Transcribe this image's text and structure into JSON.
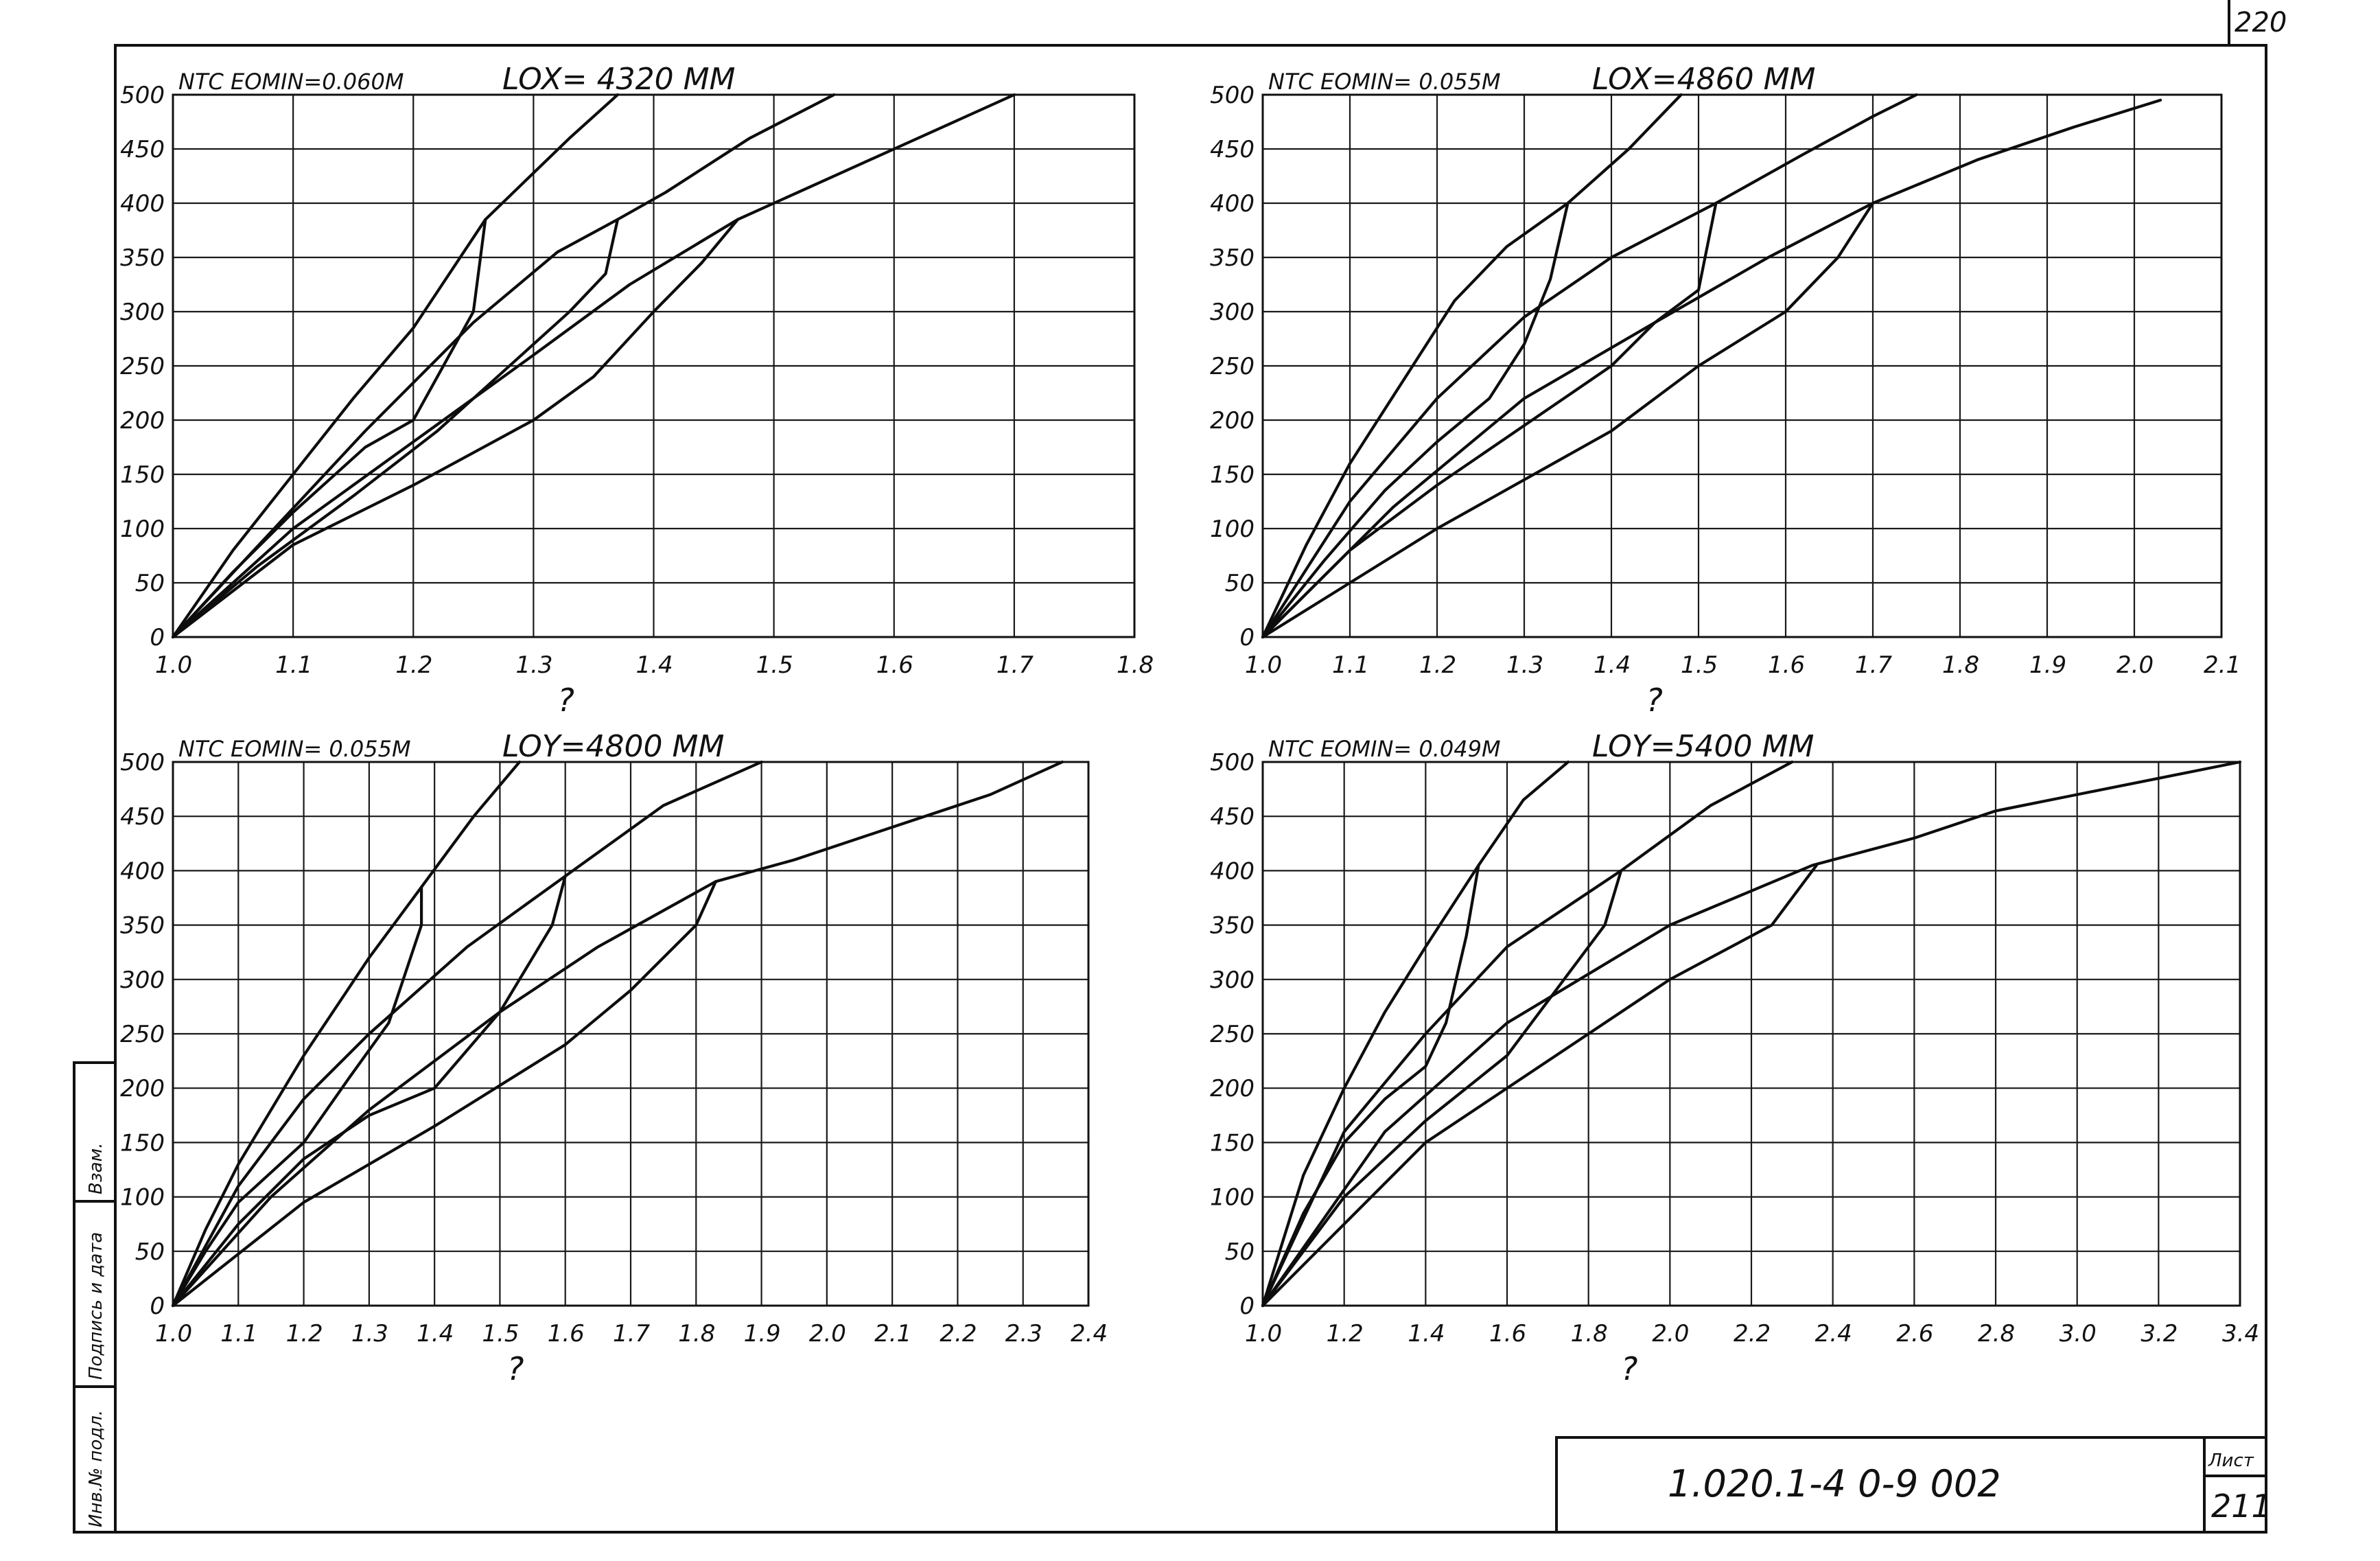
{
  "sheet": {
    "corner_number": "220",
    "designation": "1.020.1-4 0-9   002",
    "sheet_label": "Лист",
    "sheet_number": "211",
    "side_stamps": [
      "Взам.",
      "Подпись и дата",
      "Инв.№ подл."
    ]
  },
  "chart_data": [
    {
      "type": "line",
      "header_left": "NTC  EOMIN=0.060M",
      "header_right": "LOX= 4320 MM",
      "xlabel": "?",
      "ylabel": "",
      "xlim": [
        1.0,
        1.8
      ],
      "ylim": [
        0,
        500
      ],
      "xticks": [
        "1.0",
        "1.1",
        "1.2",
        "1.3",
        "1.4",
        "1.5",
        "1.6",
        "1.7",
        "1.8"
      ],
      "yticks": [
        "0",
        "50",
        "100",
        "150",
        "200",
        "250",
        "300",
        "350",
        "400",
        "450",
        "500"
      ],
      "series": [
        {
          "points": [
            [
              1.0,
              0
            ],
            [
              1.05,
              80
            ],
            [
              1.1,
              150
            ],
            [
              1.15,
              220
            ],
            [
              1.2,
              285
            ],
            [
              1.26,
              385
            ],
            [
              1.33,
              460
            ],
            [
              1.37,
              500
            ]
          ]
        },
        {
          "points": [
            [
              1.0,
              0
            ],
            [
              1.05,
              60
            ],
            [
              1.1,
              115
            ],
            [
              1.16,
              175
            ],
            [
              1.2,
              200
            ],
            [
              1.22,
              240
            ],
            [
              1.25,
              300
            ],
            [
              1.26,
              385
            ]
          ]
        },
        {
          "points": [
            [
              1.0,
              0
            ],
            [
              1.08,
              95
            ],
            [
              1.16,
              190
            ],
            [
              1.25,
              290
            ],
            [
              1.32,
              355
            ],
            [
              1.37,
              385
            ],
            [
              1.41,
              410
            ],
            [
              1.48,
              460
            ],
            [
              1.55,
              500
            ]
          ]
        },
        {
          "points": [
            [
              1.0,
              0
            ],
            [
              1.07,
              65
            ],
            [
              1.15,
              130
            ],
            [
              1.22,
              190
            ],
            [
              1.28,
              250
            ],
            [
              1.33,
              300
            ],
            [
              1.36,
              335
            ],
            [
              1.37,
              385
            ]
          ]
        },
        {
          "points": [
            [
              1.0,
              0
            ],
            [
              1.1,
              100
            ],
            [
              1.2,
              180
            ],
            [
              1.3,
              260
            ],
            [
              1.38,
              325
            ],
            [
              1.47,
              385
            ],
            [
              1.52,
              410
            ],
            [
              1.6,
              450
            ],
            [
              1.7,
              500
            ]
          ]
        },
        {
          "points": [
            [
              1.0,
              0
            ],
            [
              1.1,
              85
            ],
            [
              1.2,
              140
            ],
            [
              1.3,
              200
            ],
            [
              1.35,
              240
            ],
            [
              1.4,
              300
            ],
            [
              1.44,
              345
            ],
            [
              1.47,
              385
            ]
          ]
        }
      ]
    },
    {
      "type": "line",
      "header_left": "NTC  EOMIN= 0.055M",
      "header_right": "LOX=4860 MM",
      "xlabel": "?",
      "ylabel": "",
      "xlim": [
        1.0,
        2.1
      ],
      "ylim": [
        0,
        500
      ],
      "xticks": [
        "1.0",
        "1.1",
        "1.2",
        "1.3",
        "1.4",
        "1.5",
        "1.6",
        "1.7",
        "1.8",
        "1.9",
        "2.0",
        "2.1"
      ],
      "yticks": [
        "0",
        "50",
        "100",
        "150",
        "200",
        "250",
        "300",
        "350",
        "400",
        "450",
        "500"
      ],
      "series": [
        {
          "points": [
            [
              1.0,
              0
            ],
            [
              1.05,
              85
            ],
            [
              1.1,
              160
            ],
            [
              1.16,
              235
            ],
            [
              1.22,
              310
            ],
            [
              1.28,
              360
            ],
            [
              1.35,
              400
            ],
            [
              1.42,
              450
            ],
            [
              1.48,
              500
            ]
          ]
        },
        {
          "points": [
            [
              1.0,
              0
            ],
            [
              1.07,
              70
            ],
            [
              1.14,
              135
            ],
            [
              1.2,
              180
            ],
            [
              1.26,
              220
            ],
            [
              1.3,
              270
            ],
            [
              1.33,
              330
            ],
            [
              1.35,
              400
            ]
          ]
        },
        {
          "points": [
            [
              1.0,
              0
            ],
            [
              1.1,
              125
            ],
            [
              1.2,
              220
            ],
            [
              1.3,
              295
            ],
            [
              1.4,
              350
            ],
            [
              1.52,
              400
            ],
            [
              1.62,
              445
            ],
            [
              1.7,
              480
            ],
            [
              1.75,
              500
            ]
          ]
        },
        {
          "points": [
            [
              1.0,
              0
            ],
            [
              1.1,
              80
            ],
            [
              1.2,
              140
            ],
            [
              1.3,
              195
            ],
            [
              1.4,
              250
            ],
            [
              1.45,
              290
            ],
            [
              1.5,
              320
            ],
            [
              1.52,
              400
            ]
          ]
        },
        {
          "points": [
            [
              1.0,
              0
            ],
            [
              1.15,
              120
            ],
            [
              1.3,
              220
            ],
            [
              1.45,
              290
            ],
            [
              1.58,
              350
            ],
            [
              1.7,
              400
            ],
            [
              1.82,
              440
            ],
            [
              1.93,
              470
            ],
            [
              2.03,
              495
            ]
          ]
        },
        {
          "points": [
            [
              1.0,
              0
            ],
            [
              1.2,
              100
            ],
            [
              1.4,
              190
            ],
            [
              1.5,
              250
            ],
            [
              1.6,
              300
            ],
            [
              1.66,
              350
            ],
            [
              1.7,
              400
            ]
          ]
        }
      ]
    },
    {
      "type": "line",
      "header_left": "NTC  EOMIN= 0.055M",
      "header_right": "LOY=4800 MM",
      "xlabel": "?",
      "ylabel": "",
      "xlim": [
        1.0,
        2.4
      ],
      "ylim": [
        0,
        500
      ],
      "xticks": [
        "1.0",
        "1.1",
        "1.2",
        "1.3",
        "1.4",
        "1.5",
        "1.6",
        "1.7",
        "1.8",
        "1.9",
        "2.0",
        "2.1",
        "2.2",
        "2.3",
        "2.4"
      ],
      "yticks": [
        "0",
        "50",
        "100",
        "150",
        "200",
        "250",
        "300",
        "350",
        "400",
        "450",
        "500"
      ],
      "series": [
        {
          "points": [
            [
              1.0,
              0
            ],
            [
              1.05,
              70
            ],
            [
              1.1,
              130
            ],
            [
              1.2,
              230
            ],
            [
              1.3,
              320
            ],
            [
              1.38,
              385
            ],
            [
              1.46,
              450
            ],
            [
              1.53,
              500
            ]
          ]
        },
        {
          "points": [
            [
              1.0,
              0
            ],
            [
              1.05,
              50
            ],
            [
              1.1,
              95
            ],
            [
              1.2,
              150
            ],
            [
              1.27,
              210
            ],
            [
              1.33,
              260
            ],
            [
              1.38,
              350
            ],
            [
              1.38,
              385
            ]
          ]
        },
        {
          "points": [
            [
              1.0,
              0
            ],
            [
              1.1,
              110
            ],
            [
              1.2,
              190
            ],
            [
              1.3,
              250
            ],
            [
              1.45,
              330
            ],
            [
              1.6,
              395
            ],
            [
              1.75,
              460
            ],
            [
              1.9,
              500
            ]
          ]
        },
        {
          "points": [
            [
              1.0,
              0
            ],
            [
              1.1,
              75
            ],
            [
              1.2,
              135
            ],
            [
              1.3,
              175
            ],
            [
              1.4,
              200
            ],
            [
              1.5,
              270
            ],
            [
              1.58,
              350
            ],
            [
              1.6,
              395
            ]
          ]
        },
        {
          "points": [
            [
              1.0,
              0
            ],
            [
              1.15,
              100
            ],
            [
              1.3,
              180
            ],
            [
              1.5,
              270
            ],
            [
              1.65,
              330
            ],
            [
              1.83,
              390
            ],
            [
              1.95,
              410
            ],
            [
              2.1,
              440
            ],
            [
              2.25,
              470
            ],
            [
              2.36,
              500
            ]
          ]
        },
        {
          "points": [
            [
              1.0,
              0
            ],
            [
              1.2,
              95
            ],
            [
              1.4,
              165
            ],
            [
              1.6,
              240
            ],
            [
              1.7,
              290
            ],
            [
              1.8,
              350
            ],
            [
              1.83,
              390
            ]
          ]
        }
      ]
    },
    {
      "type": "line",
      "header_left": "NTC  EOMIN= 0.049M",
      "header_right": "LOY=5400 MM",
      "xlabel": "?",
      "ylabel": "",
      "xlim": [
        1.0,
        3.4
      ],
      "ylim": [
        0,
        500
      ],
      "xticks": [
        "1.0",
        "1.2",
        "1.4",
        "1.6",
        "1.8",
        "2.0",
        "2.2",
        "2.4",
        "2.6",
        "2.8",
        "3.0",
        "3.2",
        "3.4"
      ],
      "yticks": [
        "0",
        "50",
        "100",
        "150",
        "200",
        "250",
        "300",
        "350",
        "400",
        "450",
        "500"
      ],
      "series": [
        {
          "points": [
            [
              1.0,
              0
            ],
            [
              1.1,
              120
            ],
            [
              1.2,
              200
            ],
            [
              1.3,
              270
            ],
            [
              1.4,
              330
            ],
            [
              1.53,
              405
            ],
            [
              1.64,
              465
            ],
            [
              1.75,
              500
            ]
          ]
        },
        {
          "points": [
            [
              1.0,
              0
            ],
            [
              1.1,
              85
            ],
            [
              1.2,
              150
            ],
            [
              1.3,
              190
            ],
            [
              1.4,
              220
            ],
            [
              1.45,
              260
            ],
            [
              1.5,
              340
            ],
            [
              1.53,
              405
            ]
          ]
        },
        {
          "points": [
            [
              1.0,
              0
            ],
            [
              1.2,
              160
            ],
            [
              1.4,
              250
            ],
            [
              1.6,
              330
            ],
            [
              1.88,
              400
            ],
            [
              2.1,
              460
            ],
            [
              2.3,
              500
            ]
          ]
        },
        {
          "points": [
            [
              1.0,
              0
            ],
            [
              1.2,
              100
            ],
            [
              1.4,
              170
            ],
            [
              1.6,
              230
            ],
            [
              1.72,
              290
            ],
            [
              1.84,
              350
            ],
            [
              1.88,
              400
            ]
          ]
        },
        {
          "points": [
            [
              1.0,
              0
            ],
            [
              1.3,
              160
            ],
            [
              1.6,
              260
            ],
            [
              2.0,
              350
            ],
            [
              2.35,
              405
            ],
            [
              2.6,
              430
            ],
            [
              2.8,
              455
            ],
            [
              3.0,
              470
            ],
            [
              3.2,
              485
            ],
            [
              3.4,
              500
            ]
          ]
        },
        {
          "points": [
            [
              1.0,
              0
            ],
            [
              1.4,
              150
            ],
            [
              1.8,
              250
            ],
            [
              2.0,
              300
            ],
            [
              2.25,
              350
            ],
            [
              2.36,
              405
            ]
          ]
        }
      ]
    }
  ]
}
